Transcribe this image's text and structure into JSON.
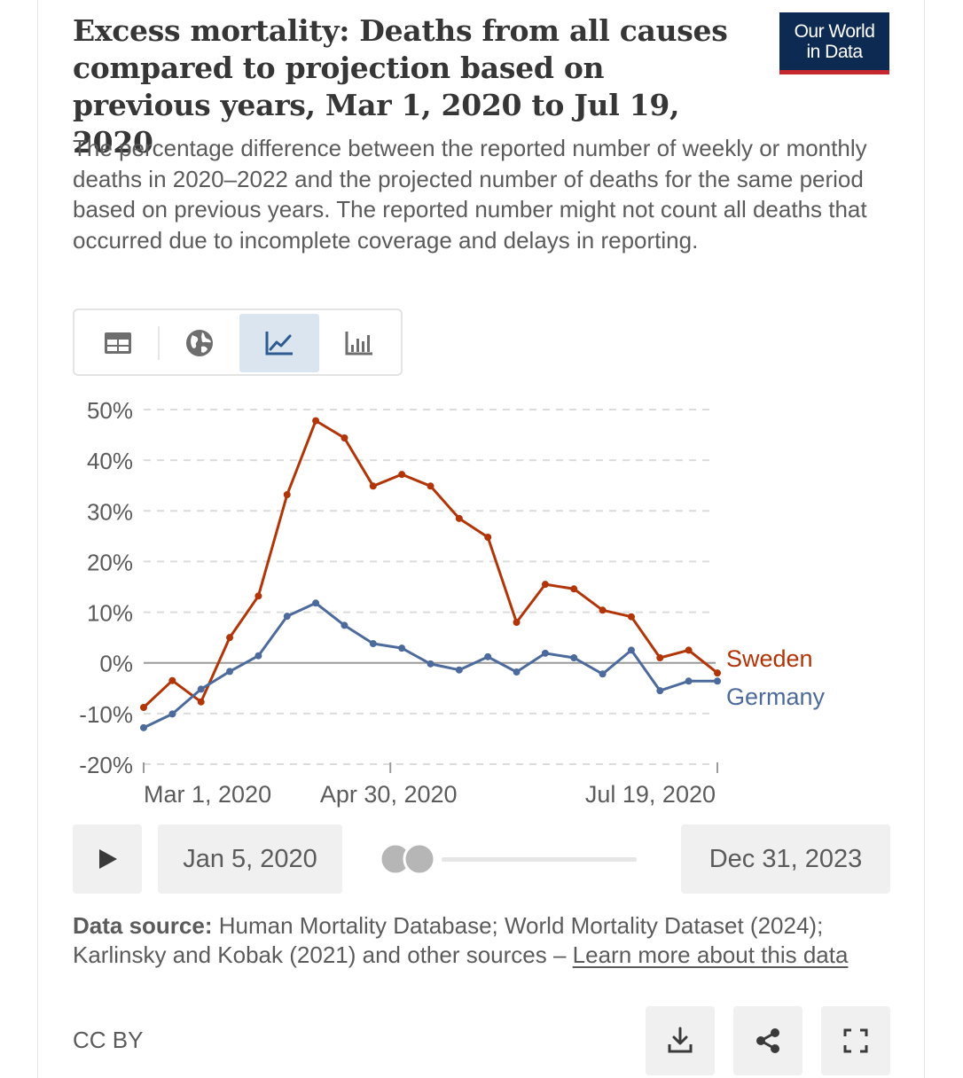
{
  "title": "Excess mortality: Deaths from all causes compared to projection based on previous years, Mar 1, 2020 to Jul 19, 2020",
  "subtitle": "The percentage difference between the reported number of weekly or monthly deaths in 2020–2022 and the projected number of deaths for the same period based on previous years. The reported number might not count all deaths that occurred due to incomplete coverage and delays in reporting.",
  "logo": {
    "line1": "Our World",
    "line2": "in Data",
    "bg": "#0d2a52",
    "accent": "#c4272e"
  },
  "tabs": [
    {
      "name": "table",
      "icon": "table-icon"
    },
    {
      "name": "map",
      "icon": "globe-icon"
    },
    {
      "name": "chart",
      "icon": "line-chart-icon",
      "active": true
    },
    {
      "name": "bar",
      "icon": "bar-chart-icon"
    }
  ],
  "chart_data": {
    "type": "line",
    "title": "Excess mortality: Deaths from all causes compared to projection based on previous years, Mar 1, 2020 to Jul 19, 2020",
    "ylim": [
      -20,
      50
    ],
    "yticks": [
      50,
      40,
      30,
      20,
      10,
      0,
      -10,
      -20
    ],
    "ytick_labels": [
      "50%",
      "40%",
      "30%",
      "20%",
      "10%",
      "0%",
      "-10%",
      "-20%"
    ],
    "x_tick_labels": [
      "Mar 1, 2020",
      "Apr 30, 2020",
      "Jul 19, 2020"
    ],
    "x_tick_index": [
      0,
      8.6,
      20
    ],
    "grid": true,
    "series": [
      {
        "name": "Sweden",
        "color": "#b13507",
        "values": [
          -8.8,
          -3.5,
          -7.7,
          5,
          13.2,
          33.2,
          47.8,
          44.4,
          34.9,
          37.2,
          34.9,
          28.5,
          24.8,
          8,
          15.5,
          14.6,
          10.4,
          9.1,
          1,
          2.5,
          -2
        ]
      },
      {
        "name": "Germany",
        "color": "#4c6a9c",
        "values": [
          -12.8,
          -10.1,
          -5.2,
          -1.7,
          1.4,
          9.2,
          11.8,
          7.4,
          3.8,
          2.9,
          -0.2,
          -1.4,
          1.2,
          -1.8,
          1.9,
          1,
          -2.2,
          2.5,
          -5.5,
          -3.6,
          -3.6
        ]
      }
    ]
  },
  "timeline": {
    "start": "Jan 5, 2020",
    "end": "Dec 31, 2023"
  },
  "footer": {
    "source_label": "Data source:",
    "source_text": "Human Mortality Database; World Mortality Dataset (2024); Karlinsky and Kobak (2021) and other sources –",
    "link_text": "Learn more about this data",
    "license": "CC BY"
  }
}
